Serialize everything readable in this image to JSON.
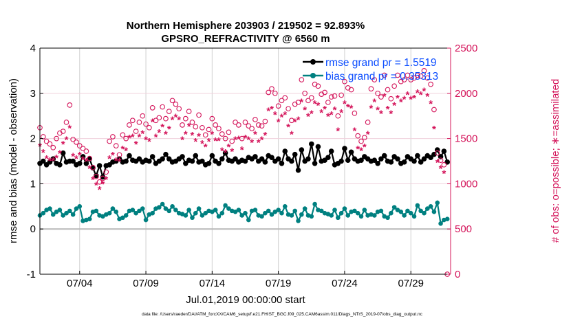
{
  "chart_data": {
    "type": "line",
    "title": "Northern Hemisphere 203903 / 219502 = 92.893%",
    "subtitle": "GPSRO_REFRACTIVITY @ 6560 m",
    "xlabel": "Jul.01,2019 00:00:00 start",
    "ylabel": "rmse and bias (model - observation)",
    "ylabel_right": "# of obs: o=possible; ∗=assimilated",
    "footnote": "data file: /Users/raeder/DAI/ATM_forcXX/CAM6_setup/f.e21.FHIST_BGC.f09_025.CAM6assim.011/Diags_NTrS_2019-07/obs_diag_output.nc",
    "xlim_days": [
      0,
      31
    ],
    "x_start_day": 0,
    "x_step_days": 0.25,
    "xticks": [
      {
        "day": 3,
        "label": "07/04"
      },
      {
        "day": 8,
        "label": "07/09"
      },
      {
        "day": 13,
        "label": "07/14"
      },
      {
        "day": 18,
        "label": "07/19"
      },
      {
        "day": 23,
        "label": "07/24"
      },
      {
        "day": 28,
        "label": "07/29"
      }
    ],
    "ylim": [
      -1,
      4
    ],
    "yticks": [
      "-1",
      "0",
      "1",
      "2",
      "3",
      "4"
    ],
    "ylim_right": [
      0,
      2500
    ],
    "yticks_right": [
      "0",
      "500",
      "1000",
      "1500",
      "2000",
      "2500"
    ],
    "legend": {
      "placement": "top-right",
      "entries": [
        "rmse grand pr = 1.5519",
        "bias grand pr = 0.35313"
      ]
    },
    "colors": {
      "rmse": "#000000",
      "bias": "#008080",
      "obs": "#d4145a",
      "legend_text": "#0a4cff",
      "grid": "#d0d0d0",
      "grid_right": "#f0d0dc"
    },
    "series": [
      {
        "name": "rmse",
        "axis": "left",
        "values": [
          1.45,
          1.5,
          1.42,
          1.48,
          1.55,
          1.45,
          1.42,
          1.68,
          1.48,
          1.5,
          1.5,
          1.42,
          1.45,
          1.6,
          1.45,
          1.55,
          1.35,
          1.18,
          1.4,
          1.15,
          1.4,
          1.42,
          1.48,
          1.5,
          1.55,
          1.48,
          1.5,
          1.62,
          1.52,
          1.5,
          1.55,
          1.48,
          1.52,
          1.5,
          1.6,
          1.45,
          1.5,
          1.55,
          1.65,
          1.55,
          1.48,
          1.5,
          1.55,
          1.6,
          1.45,
          1.52,
          1.5,
          1.62,
          1.48,
          1.5,
          1.42,
          1.45,
          1.62,
          1.5,
          1.45,
          1.55,
          1.68,
          1.52,
          1.5,
          1.55,
          1.48,
          1.52,
          1.5,
          1.58,
          1.55,
          1.6,
          1.5,
          1.55,
          1.48,
          1.62,
          1.58,
          1.5,
          1.55,
          1.45,
          1.72,
          1.55,
          1.5,
          1.65,
          1.3,
          1.75,
          1.5,
          1.55,
          1.88,
          1.45,
          1.82,
          1.5,
          1.52,
          1.58,
          1.72,
          1.42,
          1.45,
          1.5,
          1.78,
          1.52,
          1.7,
          1.55,
          1.5,
          1.52,
          1.6,
          1.55,
          1.5,
          1.52,
          1.45,
          1.55,
          1.62,
          1.5,
          1.48,
          1.6,
          1.55,
          1.45,
          1.48,
          1.6,
          1.55,
          1.5,
          1.62,
          1.48,
          1.55,
          1.62,
          1.58,
          1.65,
          1.75,
          1.6,
          1.72,
          1.48
        ]
      },
      {
        "name": "bias",
        "axis": "left",
        "values": [
          0.3,
          0.35,
          0.42,
          0.45,
          0.32,
          0.38,
          0.42,
          0.3,
          0.35,
          0.4,
          0.32,
          0.45,
          0.5,
          0.18,
          0.2,
          0.22,
          0.38,
          0.4,
          0.3,
          0.28,
          0.32,
          0.35,
          0.45,
          0.38,
          0.22,
          0.25,
          0.3,
          0.4,
          0.42,
          0.35,
          0.4,
          0.45,
          0.2,
          0.32,
          0.35,
          0.45,
          0.48,
          0.55,
          0.45,
          0.4,
          0.5,
          0.42,
          0.35,
          0.33,
          0.3,
          0.42,
          0.25,
          0.35,
          0.45,
          0.3,
          0.35,
          0.4,
          0.38,
          0.42,
          0.28,
          0.35,
          0.52,
          0.45,
          0.4,
          0.38,
          0.42,
          0.3,
          0.35,
          0.2,
          0.4,
          0.42,
          0.3,
          0.28,
          0.35,
          0.4,
          0.32,
          0.38,
          0.42,
          0.35,
          0.5,
          0.32,
          0.3,
          0.4,
          0.18,
          0.32,
          0.45,
          0.3,
          0.28,
          0.55,
          0.42,
          0.4,
          0.35,
          0.33,
          0.3,
          0.42,
          0.25,
          0.35,
          0.45,
          0.3,
          0.38,
          0.4,
          0.35,
          0.28,
          0.42,
          0.3,
          0.32,
          0.3,
          0.38,
          0.4,
          0.28,
          0.25,
          0.35,
          0.48,
          0.42,
          0.38,
          0.3,
          0.4,
          0.35,
          0.28,
          0.52,
          0.4,
          0.35,
          0.45,
          0.5,
          0.38,
          0.58,
          0.12,
          0.2,
          0.22
        ]
      },
      {
        "name": "possible",
        "axis": "right",
        "values": [
          1620,
          1520,
          1470,
          1440,
          1400,
          1500,
          1560,
          1580,
          1680,
          1870,
          1490,
          1460,
          1420,
          1390,
          1360,
          1280,
          1180,
          1080,
          1020,
          1060,
          1130,
          1470,
          1520,
          1420,
          1320,
          1540,
          1500,
          1650,
          1700,
          1580,
          1680,
          1750,
          1660,
          1620,
          1840,
          1700,
          1730,
          1850,
          1720,
          1800,
          1920,
          1880,
          1830,
          1650,
          1720,
          1800,
          1680,
          1630,
          1760,
          1620,
          1540,
          1600,
          1720,
          1650,
          1610,
          1550,
          1500,
          1570,
          1470,
          1680,
          1650,
          1500,
          1680,
          1640,
          1610,
          1710,
          1650,
          1640,
          1690,
          2010,
          2050,
          2000,
          1860,
          1920,
          1950,
          1830,
          1700,
          1880,
          1900,
          2150,
          2000,
          1920,
          1950,
          2100,
          2080,
          1990,
          2010,
          1900,
          1960,
          1970,
          1750,
          1980,
          2130,
          2060,
          2040,
          1780,
          1530,
          1470,
          1510,
          1680,
          2050,
          2150,
          2000,
          1960,
          2200,
          2040,
          1940,
          2080,
          2200,
          2130,
          2150,
          2200,
          2150,
          2170,
          2200,
          2190,
          2250,
          2170,
          2100,
          1820,
          1340,
          1260,
          1210,
          0
        ]
      },
      {
        "name": "assimilated",
        "axis": "right",
        "values": [
          1430,
          1360,
          1290,
          1270,
          1270,
          1300,
          1350,
          1450,
          1500,
          1630,
          1320,
          1290,
          1330,
          1280,
          1260,
          1180,
          1060,
          1000,
          950,
          1010,
          1060,
          1290,
          1330,
          1270,
          1260,
          1400,
          1380,
          1520,
          1530,
          1450,
          1530,
          1570,
          1500,
          1480,
          1700,
          1530,
          1580,
          1640,
          1560,
          1620,
          1720,
          1750,
          1720,
          1500,
          1560,
          1650,
          1550,
          1480,
          1540,
          1460,
          1420,
          1480,
          1560,
          1490,
          1490,
          1380,
          1360,
          1420,
          1370,
          1500,
          1510,
          1390,
          1520,
          1500,
          1470,
          1560,
          1470,
          1500,
          1550,
          1820,
          1840,
          1780,
          1700,
          1750,
          1780,
          1640,
          1560,
          1700,
          1720,
          1920,
          1830,
          1760,
          1790,
          1900,
          1880,
          1800,
          1840,
          1760,
          1780,
          1830,
          1600,
          1800,
          1900,
          1860,
          1850,
          1600,
          1400,
          1380,
          1420,
          1560,
          1850,
          1920,
          1830,
          1790,
          1980,
          1840,
          1790,
          1880,
          1960,
          1920,
          1950,
          2000,
          1950,
          1960,
          2020,
          2000,
          2040,
          1980,
          1900,
          1620,
          1250,
          1180,
          1130,
          0
        ]
      }
    ]
  }
}
